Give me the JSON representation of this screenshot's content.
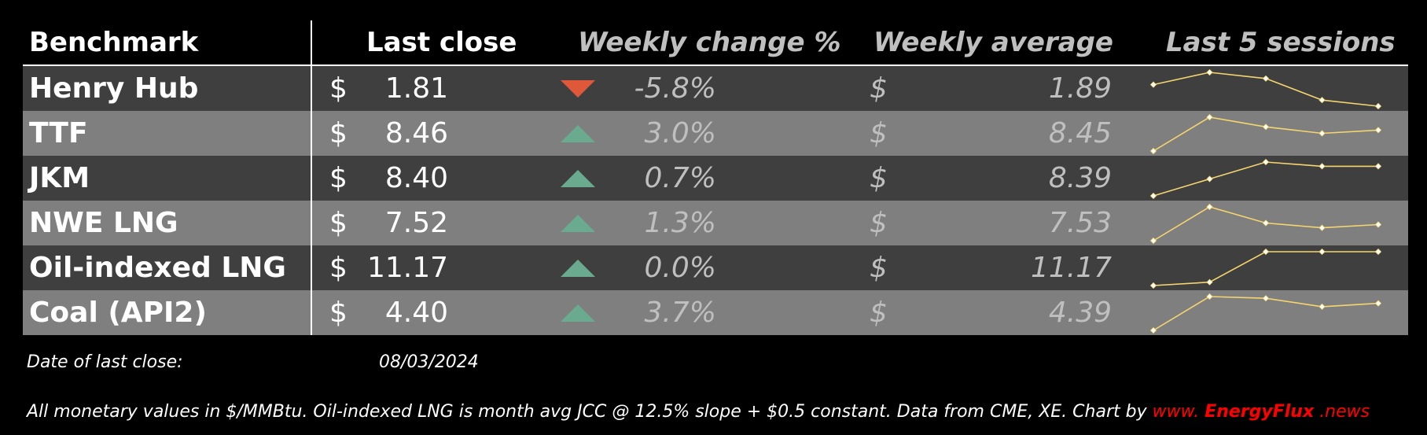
{
  "chart_data": {
    "type": "table",
    "headers": {
      "benchmark": "Benchmark",
      "last_close": "Last close",
      "weekly_change": "Weekly change %",
      "weekly_average": "Weekly average",
      "last5": "Last 5 sessions"
    },
    "colors": {
      "down": "#e0583a",
      "up": "#6aaa8f",
      "spark": "#f5d66e",
      "row_dark": "#3f3f3f",
      "row_light": "#7f7f7f"
    },
    "rows": [
      {
        "name": "Henry Hub",
        "currency": "$",
        "close": "1.81",
        "direction": "down",
        "change": "-5.8%",
        "currency2": "$",
        "average": "1.89",
        "sessions": [
          1.88,
          1.92,
          1.9,
          1.83,
          1.81
        ]
      },
      {
        "name": "TTF",
        "currency": "$",
        "close": "8.46",
        "direction": "up",
        "change": "3.0%",
        "currency2": "$",
        "average": "8.45",
        "sessions": [
          8.2,
          8.62,
          8.5,
          8.42,
          8.46
        ]
      },
      {
        "name": "JKM",
        "currency": "$",
        "close": "8.40",
        "direction": "up",
        "change": "0.7%",
        "currency2": "$",
        "average": "8.39",
        "sessions": [
          8.33,
          8.37,
          8.41,
          8.4,
          8.4
        ]
      },
      {
        "name": "NWE LNG",
        "currency": "$",
        "close": "7.52",
        "direction": "up",
        "change": "1.3%",
        "currency2": "$",
        "average": "7.53",
        "sessions": [
          7.42,
          7.63,
          7.53,
          7.5,
          7.52
        ]
      },
      {
        "name": "Oil-indexed LNG",
        "currency": "$",
        "close": "11.17",
        "direction": "up",
        "change": "0.0%",
        "currency2": "$",
        "average": "11.17",
        "sessions": [
          11.15,
          11.152,
          11.17,
          11.17,
          11.17
        ]
      },
      {
        "name": "Coal (API2)",
        "currency": "$",
        "close": "4.40",
        "direction": "up",
        "change": "3.7%",
        "currency2": "$",
        "average": "4.39",
        "sessions": [
          4.24,
          4.44,
          4.43,
          4.38,
          4.4
        ]
      }
    ]
  },
  "footer": {
    "date_label": "Date of last close:",
    "date_value": "08/03/2024",
    "note": "All monetary values in $/MMBtu. Oil-indexed LNG is month avg JCC @ 12.5% slope + $0.5 constant. Data from CME, XE. Chart by",
    "credit_prefix": "www.",
    "credit_brand": "EnergyFlux",
    "credit_suffix": ".news"
  }
}
